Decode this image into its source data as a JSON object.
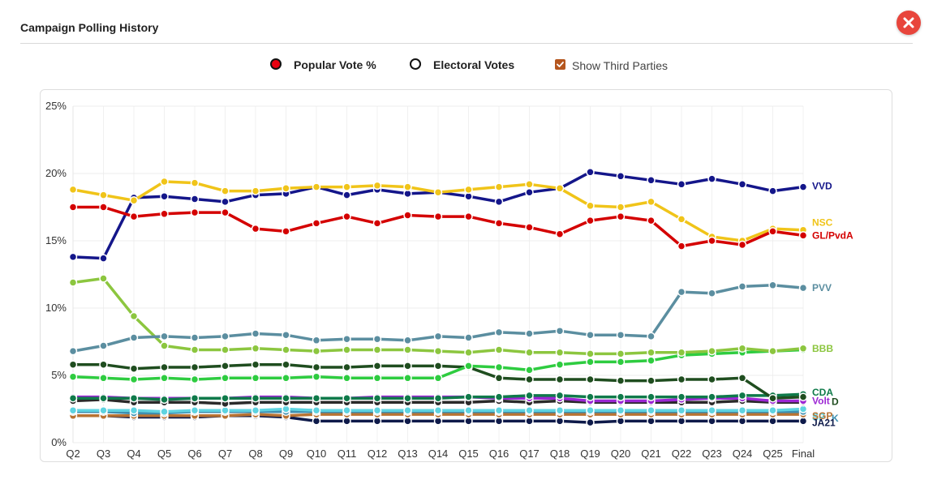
{
  "modal": {
    "title": "Campaign Polling History",
    "close_icon": "close-x-icon"
  },
  "controls": {
    "popular_vote_label": "Popular Vote %",
    "popular_vote_checked": true,
    "electoral_votes_label": "Electoral Votes",
    "electoral_votes_checked": false,
    "third_parties_label": "Show Third Parties",
    "third_parties_checked": true
  },
  "chart_data": {
    "type": "line",
    "title": "",
    "xlabel": "",
    "ylabel": "",
    "categories": [
      "Q2",
      "Q3",
      "Q4",
      "Q5",
      "Q6",
      "Q7",
      "Q8",
      "Q9",
      "Q10",
      "Q11",
      "Q12",
      "Q13",
      "Q14",
      "Q15",
      "Q16",
      "Q17",
      "Q18",
      "Q19",
      "Q20",
      "Q21",
      "Q22",
      "Q23",
      "Q24",
      "Q25",
      "Final"
    ],
    "ylim": [
      0,
      25
    ],
    "yticks": [
      0,
      5,
      10,
      15,
      20,
      25
    ],
    "ytick_suffix": "%",
    "grid": true,
    "legend": "end-labels",
    "series": [
      {
        "name": "GL/PvdA",
        "color": "#d40000",
        "values": [
          17.5,
          17.5,
          16.8,
          17.0,
          17.1,
          17.1,
          15.9,
          15.7,
          16.3,
          16.8,
          16.3,
          16.9,
          16.8,
          16.8,
          16.3,
          16.0,
          15.5,
          16.5,
          16.8,
          16.5,
          14.6,
          15.0,
          14.7,
          15.7,
          15.4
        ]
      },
      {
        "name": "NSC",
        "color": "#f0c419",
        "values": [
          18.8,
          18.4,
          18.0,
          19.4,
          19.3,
          18.7,
          18.7,
          18.9,
          19.0,
          19.0,
          19.1,
          19.0,
          18.6,
          18.8,
          19.0,
          19.2,
          18.9,
          17.6,
          17.5,
          17.9,
          16.6,
          15.3,
          15.0,
          15.9,
          15.8
        ]
      },
      {
        "name": "VVD",
        "color": "#14168a",
        "values": [
          13.8,
          13.7,
          18.2,
          18.3,
          18.1,
          17.9,
          18.4,
          18.5,
          19.0,
          18.4,
          18.8,
          18.5,
          18.6,
          18.3,
          17.9,
          18.6,
          18.9,
          20.1,
          19.8,
          19.5,
          19.2,
          19.6,
          19.2,
          18.7,
          19.0
        ]
      },
      {
        "name": "PVV",
        "color": "#5b8ea0",
        "values": [
          6.8,
          7.2,
          7.8,
          7.9,
          7.8,
          7.9,
          8.1,
          8.0,
          7.6,
          7.7,
          7.7,
          7.6,
          7.9,
          7.8,
          8.2,
          8.1,
          8.3,
          8.0,
          8.0,
          7.9,
          11.2,
          11.1,
          11.6,
          11.7,
          11.5
        ]
      },
      {
        "name": "BBB",
        "color": "#8cc63f",
        "values": [
          11.9,
          12.2,
          9.4,
          7.2,
          6.9,
          6.9,
          7.0,
          6.9,
          6.8,
          6.9,
          6.9,
          6.9,
          6.8,
          6.7,
          6.9,
          6.7,
          6.7,
          6.6,
          6.6,
          6.7,
          6.7,
          6.8,
          7.0,
          6.8,
          7.0
        ]
      },
      {
        "name": "CDA",
        "color": "#2ecc40",
        "values": [
          4.9,
          4.8,
          4.7,
          4.8,
          4.7,
          4.8,
          4.8,
          4.8,
          4.9,
          4.8,
          4.8,
          4.8,
          4.8,
          5.7,
          5.6,
          5.4,
          5.8,
          6.0,
          6.0,
          6.1,
          6.5,
          6.6,
          6.7,
          6.8,
          6.9
        ]
      },
      {
        "name": "D66",
        "color": "#1f4d1f",
        "values": [
          5.8,
          5.8,
          5.5,
          5.6,
          5.6,
          5.7,
          5.8,
          5.8,
          5.6,
          5.6,
          5.7,
          5.7,
          5.7,
          5.6,
          4.8,
          4.7,
          4.7,
          4.7,
          4.6,
          4.6,
          4.7,
          4.7,
          4.8,
          3.3,
          3.4
        ]
      },
      {
        "name": "CDA",
        "color": "#0f7a4a",
        "values": [
          3.3,
          3.3,
          3.3,
          3.2,
          3.3,
          3.3,
          3.3,
          3.3,
          3.3,
          3.3,
          3.3,
          3.3,
          3.3,
          3.4,
          3.4,
          3.5,
          3.5,
          3.4,
          3.4,
          3.4,
          3.4,
          3.4,
          3.5,
          3.5,
          3.6
        ]
      },
      {
        "name": "Volt",
        "color": "#9c27d4",
        "values": [
          3.4,
          3.4,
          3.3,
          3.3,
          3.3,
          3.3,
          3.4,
          3.4,
          3.3,
          3.3,
          3.4,
          3.4,
          3.4,
          3.4,
          3.3,
          3.3,
          3.3,
          3.1,
          3.1,
          3.1,
          3.2,
          3.3,
          3.3,
          3.1,
          3.1
        ]
      },
      {
        "name": "JA21",
        "color": "#2a2a2a",
        "values": [
          3.1,
          3.2,
          3.0,
          3.0,
          3.0,
          2.9,
          3.0,
          3.0,
          3.0,
          3.0,
          3.0,
          3.0,
          3.0,
          3.0,
          3.1,
          3.0,
          3.1,
          3.0,
          3.0,
          3.0,
          3.0,
          3.0,
          3.1,
          3.0,
          3.0
        ]
      },
      {
        "name": "SP",
        "color": "#5ed3e0",
        "values": [
          2.4,
          2.4,
          2.4,
          2.3,
          2.4,
          2.4,
          2.4,
          2.5,
          2.4,
          2.4,
          2.4,
          2.4,
          2.4,
          2.4,
          2.4,
          2.4,
          2.4,
          2.4,
          2.4,
          2.4,
          2.4,
          2.4,
          2.4,
          2.4,
          2.5
        ]
      },
      {
        "name": "GPK",
        "color": "#3e8fb0",
        "values": [
          2.3,
          2.3,
          2.2,
          2.2,
          2.3,
          2.3,
          2.3,
          2.3,
          2.3,
          2.3,
          2.3,
          2.3,
          2.3,
          2.3,
          2.3,
          2.3,
          2.3,
          2.3,
          2.3,
          2.3,
          2.3,
          2.3,
          2.3,
          2.3,
          2.3
        ]
      },
      {
        "name": "SGP",
        "color": "#b87333",
        "values": [
          2.0,
          2.0,
          2.0,
          2.0,
          2.0,
          2.0,
          2.1,
          2.0,
          2.1,
          2.1,
          2.1,
          2.1,
          2.1,
          2.1,
          2.1,
          2.1,
          2.1,
          2.1,
          2.1,
          2.1,
          2.1,
          2.1,
          2.1,
          2.1,
          2.1
        ]
      },
      {
        "name": "JA21",
        "color": "#0e1a4a",
        "values": [
          2.0,
          2.0,
          1.9,
          1.9,
          1.9,
          2.0,
          2.0,
          1.9,
          1.6,
          1.6,
          1.6,
          1.6,
          1.6,
          1.6,
          1.6,
          1.6,
          1.6,
          1.5,
          1.6,
          1.6,
          1.6,
          1.6,
          1.6,
          1.6,
          1.6
        ]
      }
    ],
    "end_labels": [
      {
        "text": "VVD",
        "color": "#14168a"
      },
      {
        "text": "NSC",
        "color": "#f0c419"
      },
      {
        "text": "GL/PvdA",
        "color": "#d40000"
      },
      {
        "text": "PVV",
        "color": "#5b8ea0"
      },
      {
        "text": "BBB",
        "color": "#8cc63f"
      },
      {
        "text": "CDA",
        "color": "#0f7a4a"
      },
      {
        "text": "D",
        "color": "#1f4d1f"
      },
      {
        "text": "Volt",
        "color": "#9c27d4"
      },
      {
        "text": "SP",
        "color": "#5ed3e0"
      },
      {
        "text": "K",
        "color": "#3e8fb0"
      },
      {
        "text": "SGP",
        "color": "#b87333"
      },
      {
        "text": "JA21",
        "color": "#0e1a4a"
      }
    ]
  }
}
